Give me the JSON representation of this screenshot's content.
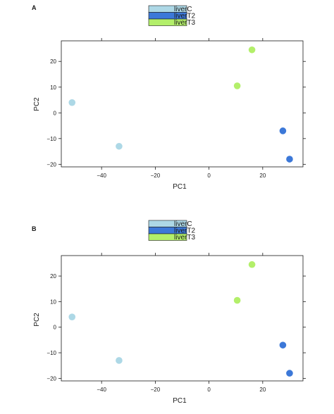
{
  "colors": {
    "liverC": "#add8e6",
    "liverT2": "#3c78d8",
    "liverT3": "#b3ef6a",
    "axis": "#1a1a1a"
  },
  "chart_data": [
    {
      "panel": "A",
      "type": "scatter",
      "xlabel": "PC1",
      "ylabel": "PC2",
      "xlim": [
        -55,
        35
      ],
      "ylim": [
        -21,
        28
      ],
      "xticks": [
        -40,
        -20,
        0,
        20
      ],
      "yticks": [
        -20,
        -10,
        0,
        10,
        20
      ],
      "grid": false,
      "legend_position": "top",
      "series": [
        {
          "name": "liverC",
          "color": "#add8e6",
          "points": [
            {
              "x": -51,
              "y": 4
            },
            {
              "x": -33.5,
              "y": -13
            }
          ]
        },
        {
          "name": "liverT2",
          "color": "#3c78d8",
          "points": [
            {
              "x": 27.5,
              "y": -7
            },
            {
              "x": 30,
              "y": -18
            }
          ]
        },
        {
          "name": "liverT3",
          "color": "#b3ef6a",
          "points": [
            {
              "x": 10.5,
              "y": 10.5
            },
            {
              "x": 16,
              "y": 24.5
            }
          ]
        }
      ]
    },
    {
      "panel": "B",
      "type": "scatter",
      "xlabel": "PC1",
      "ylabel": "PC2",
      "xlim": [
        -55,
        35
      ],
      "ylim": [
        -21,
        28
      ],
      "xticks": [
        -40,
        -20,
        0,
        20
      ],
      "yticks": [
        -20,
        -10,
        0,
        10,
        20
      ],
      "grid": false,
      "legend_position": "top",
      "series": [
        {
          "name": "liverC",
          "color": "#add8e6",
          "points": [
            {
              "x": -51,
              "y": 4
            },
            {
              "x": -33.5,
              "y": -13
            }
          ]
        },
        {
          "name": "liverT2",
          "color": "#3c78d8",
          "points": [
            {
              "x": 27.5,
              "y": -7
            },
            {
              "x": 30,
              "y": -18
            }
          ]
        },
        {
          "name": "liverT3",
          "color": "#b3ef6a",
          "points": [
            {
              "x": 10.5,
              "y": 10.5
            },
            {
              "x": 16,
              "y": 24.5
            }
          ]
        }
      ]
    }
  ]
}
